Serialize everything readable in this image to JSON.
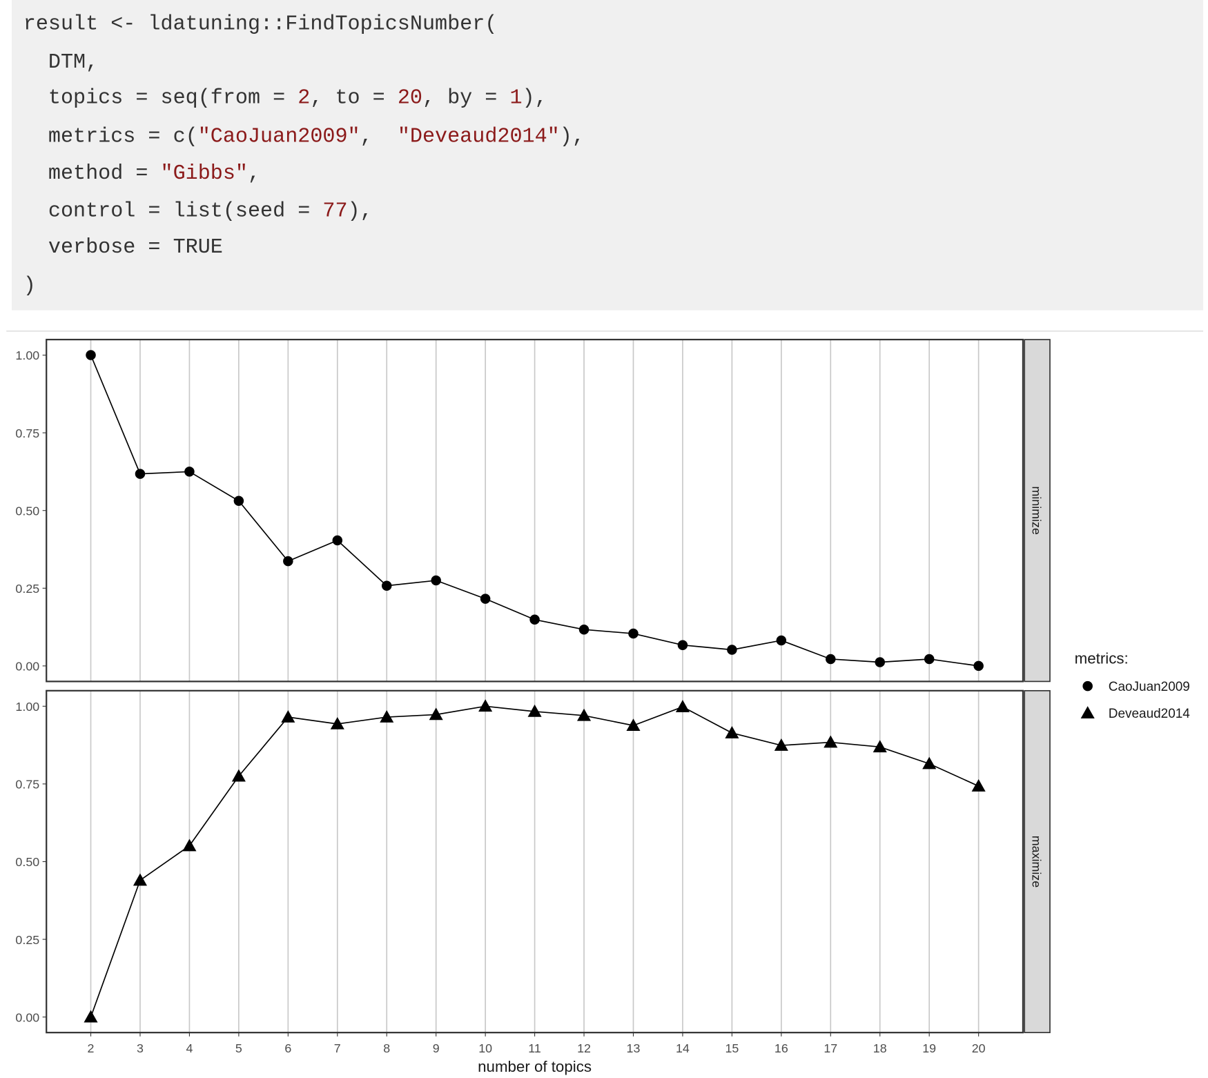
{
  "code": {
    "color": "#333333",
    "lines": [
      [
        {
          "text": "result <- ldatuning::FindTopicsNumber("
        }
      ],
      [
        {
          "text": "  DTM,"
        }
      ],
      [
        {
          "text": "  topics = seq(from = "
        },
        {
          "text": "2",
          "color": "#8b1a1a"
        },
        {
          "text": ", to = "
        },
        {
          "text": "20",
          "color": "#8b1a1a"
        },
        {
          "text": ", by = "
        },
        {
          "text": "1",
          "color": "#8b1a1a"
        },
        {
          "text": "),"
        }
      ],
      [
        {
          "text": "  metrics = c("
        },
        {
          "text": "\"CaoJuan2009\"",
          "color": "#8b1a1a"
        },
        {
          "text": ",  "
        },
        {
          "text": "\"Deveaud2014\"",
          "color": "#8b1a1a"
        },
        {
          "text": "),"
        }
      ],
      [
        {
          "text": "  method = "
        },
        {
          "text": "\"Gibbs\"",
          "color": "#8b1a1a"
        },
        {
          "text": ","
        }
      ],
      [
        {
          "text": "  control = list(seed = "
        },
        {
          "text": "77",
          "color": "#8b1a1a"
        },
        {
          "text": "),"
        }
      ],
      [
        {
          "text": "  verbose = TRUE"
        }
      ],
      [
        {
          "text": ")"
        }
      ]
    ]
  },
  "chart_data": {
    "type": "line",
    "x": [
      2,
      3,
      4,
      5,
      6,
      7,
      8,
      9,
      10,
      11,
      12,
      13,
      14,
      15,
      16,
      17,
      18,
      19,
      20
    ],
    "xlim": [
      1.1,
      20.9
    ],
    "xticks": [
      2,
      3,
      4,
      5,
      6,
      7,
      8,
      9,
      10,
      11,
      12,
      13,
      14,
      15,
      16,
      17,
      18,
      19,
      20
    ],
    "xlabel": "number of topics",
    "grid": true,
    "legend_title": "metrics:",
    "legend": "right",
    "panels": [
      {
        "strip": "minimize",
        "ylim": [
          -0.05,
          1.05
        ],
        "yticks": [
          {
            "value": 0,
            "label": "0.00"
          },
          {
            "value": 0.25,
            "label": "0.25"
          },
          {
            "value": 0.5,
            "label": "0.50"
          },
          {
            "value": 0.75,
            "label": "0.75"
          },
          {
            "value": 1,
            "label": "1.00"
          }
        ],
        "series": [
          {
            "name": "CaoJuan2009",
            "marker": "circle",
            "color": "#000000",
            "values": [
              1.0,
              0.618,
              0.625,
              0.531,
              0.337,
              0.404,
              0.258,
              0.275,
              0.216,
              0.149,
              0.117,
              0.104,
              0.067,
              0.052,
              0.082,
              0.022,
              0.012,
              0.022,
              0.0
            ]
          }
        ]
      },
      {
        "strip": "maximize",
        "ylim": [
          -0.05,
          1.05
        ],
        "yticks": [
          {
            "value": 0,
            "label": "0.00"
          },
          {
            "value": 0.25,
            "label": "0.25"
          },
          {
            "value": 0.5,
            "label": "0.50"
          },
          {
            "value": 0.75,
            "label": "0.75"
          },
          {
            "value": 1,
            "label": "1.00"
          }
        ],
        "series": [
          {
            "name": "Deveaud2014",
            "marker": "triangle",
            "color": "#000000",
            "values": [
              0.0,
              0.44,
              0.551,
              0.775,
              0.965,
              0.943,
              0.965,
              0.973,
              1.0,
              0.983,
              0.97,
              0.938,
              0.998,
              0.914,
              0.874,
              0.884,
              0.869,
              0.815,
              0.743
            ]
          }
        ]
      }
    ]
  }
}
